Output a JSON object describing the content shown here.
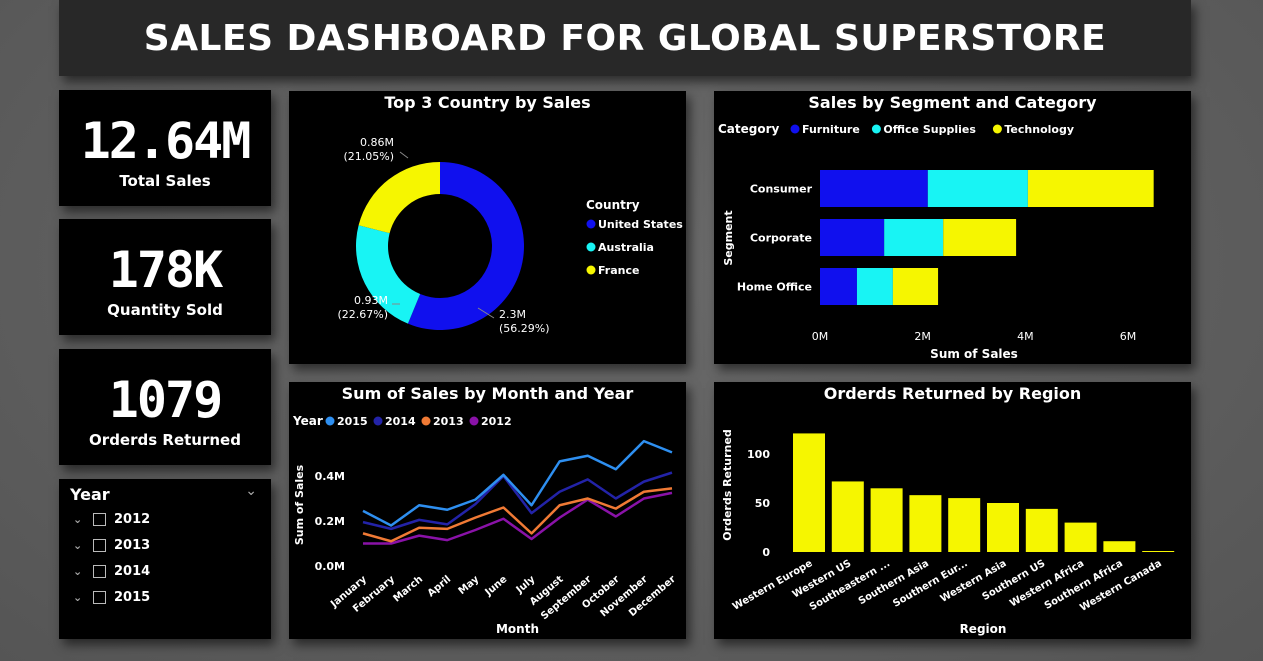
{
  "header": {
    "title": "SALES DASHBOARD FOR GLOBAL SUPERSTORE"
  },
  "kpis": [
    {
      "value": "12.64M",
      "label": "Total Sales"
    },
    {
      "value": "178K",
      "label": "Quantity Sold"
    },
    {
      "value": "1079",
      "label": "Orderds Returned"
    }
  ],
  "slicer": {
    "title": "Year",
    "items": [
      "2012",
      "2013",
      "2014",
      "2015"
    ]
  },
  "colors": {
    "blue": "#1010ee",
    "cyan": "#18f4f4",
    "yellow": "#f6f600"
  },
  "chart_data": [
    {
      "type": "pie",
      "title": "Top 3 Country by Sales",
      "legend_title": "Country",
      "categories": [
        "United States",
        "Australia",
        "France"
      ],
      "values": [
        2.3,
        0.93,
        0.86
      ],
      "labels": [
        [
          "2.3M",
          "(56.29%)"
        ],
        [
          "0.93M",
          "(22.67%)"
        ],
        [
          "0.86M",
          "(21.05%)"
        ]
      ],
      "colors": [
        "#1010ee",
        "#18f4f4",
        "#f6f600"
      ]
    },
    {
      "type": "bar",
      "orientation": "horizontal",
      "stacked": true,
      "title": "Sales by Segment and Category",
      "legend_title": "Category",
      "categories": [
        "Consumer",
        "Corporate",
        "Home Office"
      ],
      "series": [
        {
          "name": "Furniture",
          "color": "#1010ee",
          "values": [
            2.1,
            1.25,
            0.72
          ]
        },
        {
          "name": "Office Supplies",
          "color": "#18f4f4",
          "values": [
            1.95,
            1.15,
            0.7
          ]
        },
        {
          "name": "Technology",
          "color": "#f6f600",
          "values": [
            2.45,
            1.42,
            0.88
          ]
        }
      ],
      "xlabel": "Sum of Sales",
      "ylabel": "Segment",
      "xticks": [
        "0M",
        "2M",
        "4M",
        "6M"
      ],
      "xlim": [
        0,
        7
      ]
    },
    {
      "type": "line",
      "title": "Sum of Sales by Month and Year",
      "legend_title": "Year",
      "categories": [
        "January",
        "February",
        "March",
        "April",
        "May",
        "June",
        "July",
        "August",
        "September",
        "October",
        "November",
        "December"
      ],
      "series": [
        {
          "name": "2015",
          "color": "#2e8ff0",
          "values": [
            0.245,
            0.18,
            0.27,
            0.25,
            0.295,
            0.405,
            0.27,
            0.465,
            0.49,
            0.43,
            0.555,
            0.505
          ]
        },
        {
          "name": "2014",
          "color": "#2323a8",
          "values": [
            0.195,
            0.165,
            0.205,
            0.185,
            0.275,
            0.4,
            0.235,
            0.33,
            0.385,
            0.3,
            0.375,
            0.415
          ]
        },
        {
          "name": "2013",
          "color": "#f07a35",
          "values": [
            0.145,
            0.11,
            0.17,
            0.165,
            0.215,
            0.26,
            0.145,
            0.27,
            0.3,
            0.255,
            0.33,
            0.345
          ]
        },
        {
          "name": "2012",
          "color": "#8a12a8",
          "values": [
            0.1,
            0.1,
            0.135,
            0.115,
            0.16,
            0.21,
            0.12,
            0.215,
            0.295,
            0.22,
            0.3,
            0.325
          ]
        }
      ],
      "xlabel": "Month",
      "ylabel": "Sum of Sales",
      "yticks": [
        "0.0M",
        "0.2M",
        "0.4M"
      ],
      "ylim": [
        0,
        0.6
      ]
    },
    {
      "type": "bar",
      "title": "Orderds Returned by Region",
      "categories": [
        "Western Europe",
        "Western US",
        "Southeastern ...",
        "Southern Asia",
        "Southern Eur...",
        "Western Asia",
        "Southern US",
        "Western Africa",
        "Southern Africa",
        "Western Canada"
      ],
      "values": [
        121,
        72,
        65,
        58,
        55,
        50,
        44,
        30,
        11,
        1
      ],
      "color": "#f6f600",
      "xlabel": "Region",
      "ylabel": "Orderds Returned",
      "yticks": [
        "0",
        "50",
        "100"
      ],
      "ylim": [
        0,
        130
      ]
    }
  ]
}
